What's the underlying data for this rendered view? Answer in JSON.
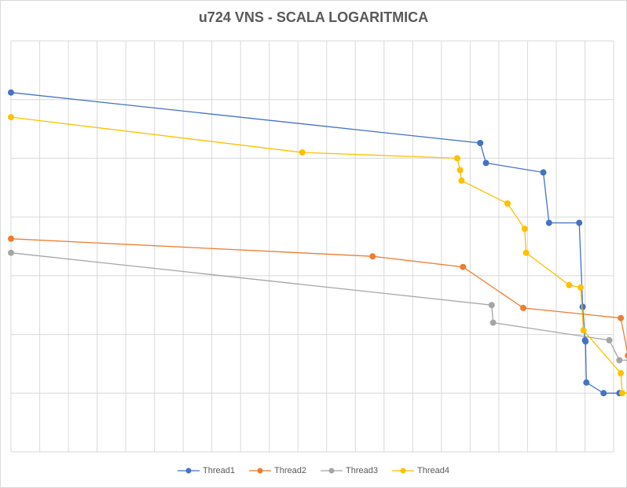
{
  "chart_data": {
    "type": "line",
    "title": "u724 VNS - SCALA LOGARITMICA",
    "xlabel": "",
    "ylabel": "",
    "grid": true,
    "legend_position": "bottom",
    "x_axis_labels_shown": false,
    "y_axis_labels_shown": false,
    "y_scale": "log",
    "note": "axes carry no tick labels; values below are read relative to the gridlines (x: column index 0-21, y: row index 0-7 from bottom)",
    "series": [
      {
        "name": "Thread1",
        "color": "#4472C4",
        "points": [
          [
            0.0,
            6.12
          ],
          [
            16.35,
            5.26
          ],
          [
            16.55,
            4.92
          ],
          [
            18.55,
            4.76
          ],
          [
            18.75,
            3.9
          ],
          [
            19.8,
            3.9
          ],
          [
            19.92,
            2.47
          ],
          [
            20.0,
            1.9
          ],
          [
            20.02,
            1.88
          ],
          [
            20.05,
            1.18
          ],
          [
            20.65,
            1.0
          ],
          [
            21.2,
            1.0
          ],
          [
            21.95,
            1.0
          ]
        ]
      },
      {
        "name": "Thread2",
        "color": "#ED7D31",
        "points": [
          [
            0.0,
            3.63
          ],
          [
            12.6,
            3.33
          ],
          [
            15.75,
            3.15
          ],
          [
            17.85,
            2.45
          ],
          [
            21.25,
            2.28
          ],
          [
            21.5,
            1.64
          ],
          [
            21.95,
            1.0
          ]
        ]
      },
      {
        "name": "Thread3",
        "color": "#A5A5A5",
        "points": [
          [
            0.0,
            3.39
          ],
          [
            16.75,
            2.5
          ],
          [
            16.8,
            2.2
          ],
          [
            20.85,
            1.9
          ],
          [
            21.2,
            1.56
          ],
          [
            21.95,
            1.56
          ]
        ]
      },
      {
        "name": "Thread4",
        "color": "#FFC000",
        "points": [
          [
            0.0,
            5.7
          ],
          [
            10.15,
            5.1
          ],
          [
            15.55,
            5.0
          ],
          [
            15.65,
            4.8
          ],
          [
            15.7,
            4.62
          ],
          [
            17.3,
            4.23
          ],
          [
            17.9,
            3.8
          ],
          [
            17.95,
            3.39
          ],
          [
            19.45,
            2.84
          ],
          [
            19.85,
            2.8
          ],
          [
            19.95,
            2.07
          ],
          [
            21.25,
            1.34
          ],
          [
            21.3,
            1.0
          ],
          [
            21.95,
            1.0
          ]
        ]
      }
    ]
  }
}
